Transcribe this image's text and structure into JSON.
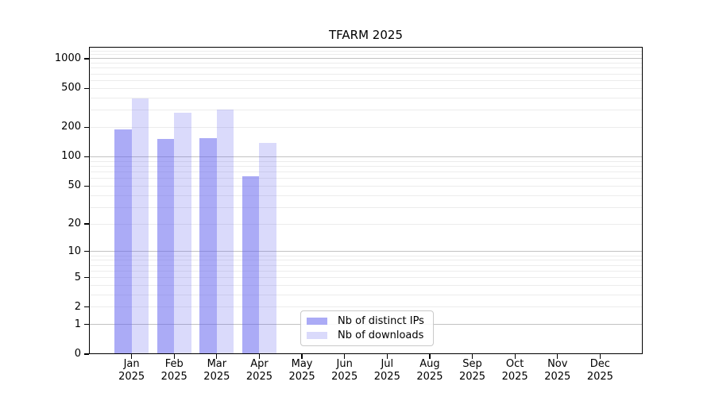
{
  "chart_data": {
    "type": "bar",
    "title": "TFARM 2025",
    "categories": [
      "Jan",
      "Feb",
      "Mar",
      "Apr",
      "May",
      "Jun",
      "Jul",
      "Aug",
      "Sep",
      "Oct",
      "Nov",
      "Dec"
    ],
    "category_year": "2025",
    "series": [
      {
        "name": "Nb of distinct IPs",
        "values": [
          192,
          153,
          156,
          63,
          null,
          null,
          null,
          null,
          null,
          null,
          null,
          null
        ],
        "color": "rgba(102,102,238,0.55)"
      },
      {
        "name": "Nb of downloads",
        "values": [
          394,
          281,
          304,
          139,
          null,
          null,
          null,
          null,
          null,
          null,
          null,
          null
        ],
        "color": "rgba(102,102,238,0.24)"
      }
    ],
    "y_ticks": [
      1000,
      500,
      200,
      100,
      50,
      20,
      10,
      5,
      2,
      1,
      0
    ],
    "y_scale": "log10(1+y)",
    "ylim": [
      0,
      1300
    ],
    "xlabel": "",
    "ylabel": "",
    "grid": "horizontal major at powers of 10, minor log subdivisions",
    "legend_position": "lower center"
  },
  "colors": {
    "grid_major": "#c2c2c2",
    "grid_minor": "#ececec",
    "axis": "#000000",
    "legend_border": "#c9c9c9",
    "background": "#ffffff"
  }
}
